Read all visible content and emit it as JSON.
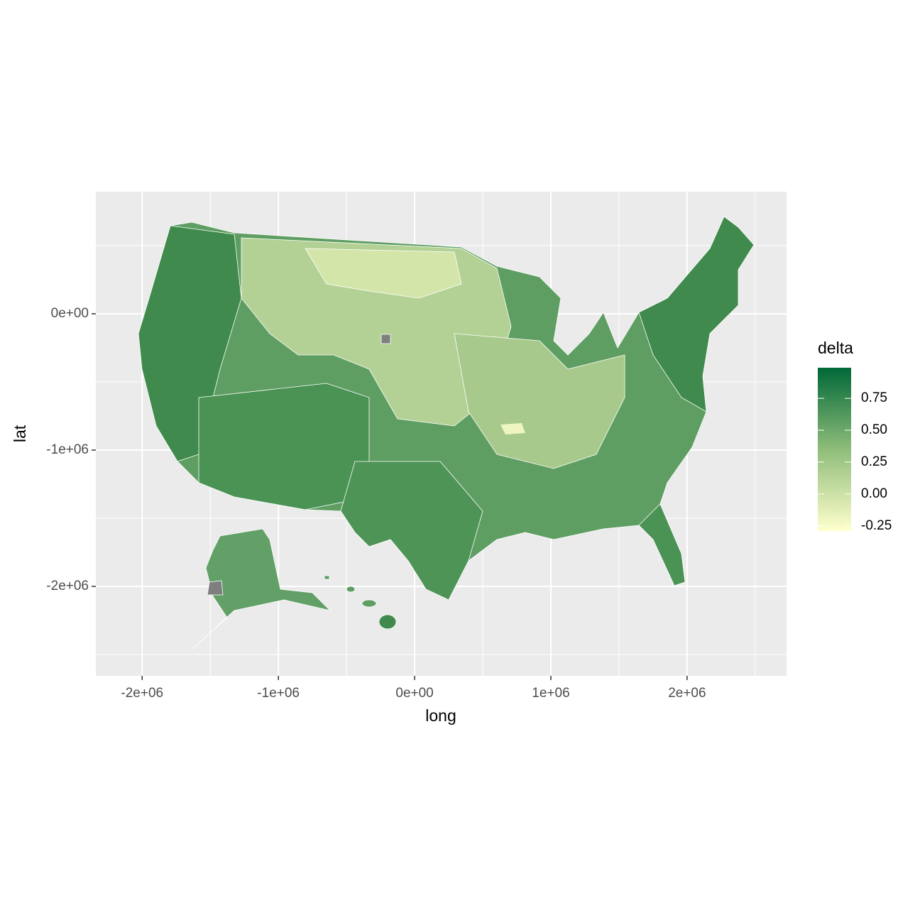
{
  "chart_data": {
    "type": "choropleth",
    "x_label": "long",
    "y_label": "lat",
    "xlim": [
      -2340000,
      2730000
    ],
    "ylim": [
      -2656000,
      896000
    ],
    "xticks": [
      {
        "value": -2000000,
        "label": "-2e+06"
      },
      {
        "value": -1000000,
        "label": "-1e+06"
      },
      {
        "value": 0,
        "label": "0e+00"
      },
      {
        "value": 1000000,
        "label": "1e+06"
      },
      {
        "value": 2000000,
        "label": "2e+06"
      }
    ],
    "yticks": [
      {
        "value": -2000000,
        "label": "-2e+06"
      },
      {
        "value": -1000000,
        "label": "-1e+06"
      },
      {
        "value": 0,
        "label": "0e+00"
      }
    ],
    "grid": true,
    "legend": {
      "title": "delta",
      "lim": [
        -0.29,
        0.99
      ],
      "ticks": [
        -0.25,
        {
          "value": 0,
          "label": "0.00"
        },
        0.25,
        {
          "value": 0.5,
          "label": "0.50"
        },
        0.75
      ],
      "low_color": "#ffffcc",
      "high_color": "#006837"
    }
  }
}
